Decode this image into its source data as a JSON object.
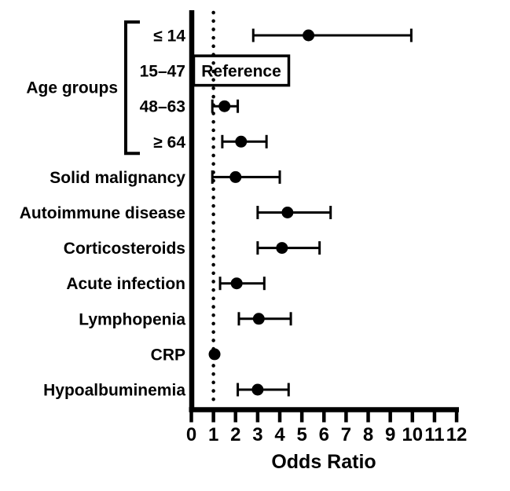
{
  "figure": {
    "background": "#ffffff",
    "ink": "#000000"
  },
  "chart_data": {
    "type": "scatter",
    "subtype": "forest-plot-odds-ratios",
    "title": "",
    "xlabel": "Odds Ratio",
    "ylabel": "",
    "xlim": [
      0,
      12
    ],
    "xticks": [
      0,
      1,
      2,
      3,
      4,
      5,
      6,
      7,
      8,
      9,
      10,
      11,
      12
    ],
    "reference_line_x": 1,
    "reference_line_style": "dotted",
    "grid": "off",
    "group_label": "Age groups",
    "group_row_span": [
      0,
      3
    ],
    "reference_label": "Reference",
    "rows": [
      {
        "label": "≤ 14",
        "or": 5.3,
        "ci_low": 2.8,
        "ci_high": 9.95,
        "group": "Age groups",
        "reference": false
      },
      {
        "label": "15–47",
        "or": null,
        "ci_low": null,
        "ci_high": null,
        "group": "Age groups",
        "reference": true
      },
      {
        "label": "48–63",
        "or": 1.5,
        "ci_low": 0.95,
        "ci_high": 2.1,
        "group": "Age groups",
        "reference": false
      },
      {
        "label": "≥ 64",
        "or": 2.25,
        "ci_low": 1.4,
        "ci_high": 3.4,
        "group": "Age groups",
        "reference": false
      },
      {
        "label": "Solid malignancy",
        "or": 2.0,
        "ci_low": 0.95,
        "ci_high": 4.0,
        "group": null,
        "reference": false
      },
      {
        "label": "Autoimmune disease",
        "or": 4.35,
        "ci_low": 3.0,
        "ci_high": 6.3,
        "group": null,
        "reference": false
      },
      {
        "label": "Corticosteroids",
        "or": 4.1,
        "ci_low": 3.0,
        "ci_high": 5.8,
        "group": null,
        "reference": false
      },
      {
        "label": "Acute infection",
        "or": 2.05,
        "ci_low": 1.3,
        "ci_high": 3.3,
        "group": null,
        "reference": false
      },
      {
        "label": "Lymphopenia",
        "or": 3.05,
        "ci_low": 2.15,
        "ci_high": 4.5,
        "group": null,
        "reference": false
      },
      {
        "label": "CRP",
        "or": 1.05,
        "ci_low": 1.05,
        "ci_high": 1.05,
        "group": null,
        "reference": false
      },
      {
        "label": "Hypoalbuminemia",
        "or": 3.0,
        "ci_low": 2.1,
        "ci_high": 4.4,
        "group": null,
        "reference": false
      }
    ]
  }
}
